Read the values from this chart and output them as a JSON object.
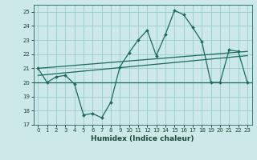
{
  "xlabel": "Humidex (Indice chaleur)",
  "background_color": "#cce8e8",
  "grid_color": "#99cccc",
  "line_color": "#1a6b5a",
  "xlim": [
    -0.5,
    23.5
  ],
  "ylim": [
    17,
    25.5
  ],
  "yticks": [
    17,
    18,
    19,
    20,
    21,
    22,
    23,
    24,
    25
  ],
  "xticks": [
    0,
    1,
    2,
    3,
    4,
    5,
    6,
    7,
    8,
    9,
    10,
    11,
    12,
    13,
    14,
    15,
    16,
    17,
    18,
    19,
    20,
    21,
    22,
    23
  ],
  "x": [
    0,
    1,
    2,
    3,
    4,
    5,
    6,
    7,
    8,
    9,
    10,
    11,
    12,
    13,
    14,
    15,
    16,
    17,
    18,
    19,
    20,
    21,
    22,
    23
  ],
  "line1": [
    21.0,
    20.0,
    20.4,
    20.5,
    19.9,
    17.7,
    17.8,
    17.5,
    18.6,
    21.1,
    22.1,
    23.0,
    23.7,
    21.9,
    23.4,
    25.1,
    24.8,
    23.9,
    22.9,
    20.0,
    20.0,
    22.3,
    22.2,
    20.0
  ],
  "line2_y": [
    20.0,
    20.0
  ],
  "line3_y": [
    21.0,
    22.2
  ],
  "line4_y": [
    20.5,
    21.9
  ]
}
